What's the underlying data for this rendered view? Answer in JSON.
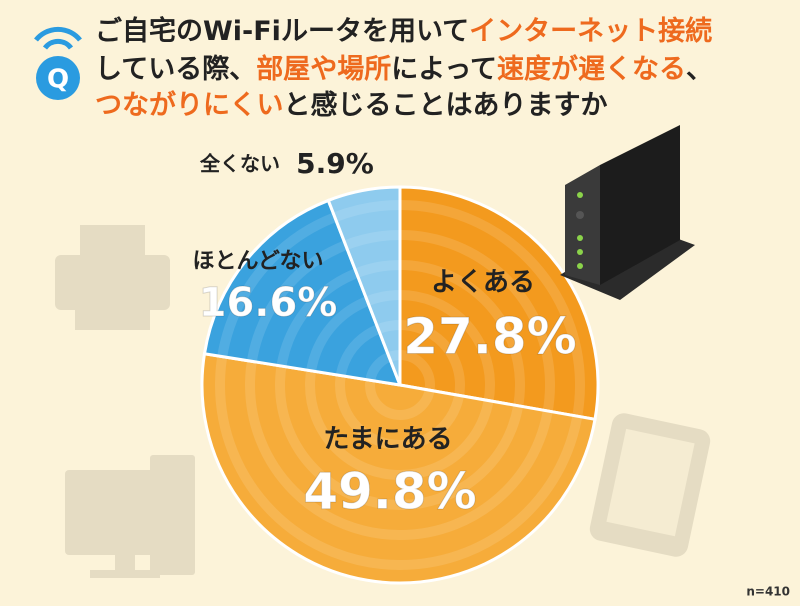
{
  "chart_data": {
    "type": "pie",
    "title_lines": [
      [
        {
          "text": "ご自宅のWi-Fiルータを用いて",
          "color": "#222222"
        },
        {
          "text": "インターネット接続",
          "color": "#ee6a1e"
        }
      ],
      [
        {
          "text": "している際、",
          "color": "#222222"
        },
        {
          "text": "部屋や場所",
          "color": "#ee6a1e"
        },
        {
          "text": "によって",
          "color": "#222222"
        },
        {
          "text": "速度が遅くなる",
          "color": "#ee6a1e"
        },
        {
          "text": "、",
          "color": "#222222"
        }
      ],
      [
        {
          "text": "つながりにくい",
          "color": "#ee6a1e"
        },
        {
          "text": "と感じることはありますか",
          "color": "#222222"
        }
      ]
    ],
    "categories": [
      "よくある",
      "たまにある",
      "ほとんどない",
      "全くない"
    ],
    "values": [
      27.8,
      49.8,
      16.6,
      5.9
    ],
    "value_labels": [
      "27.8%",
      "49.8%",
      "16.6%",
      "5.9%"
    ],
    "colors": [
      "#f39a1e",
      "#f6ac3a",
      "#3aa2de",
      "#8ecbee"
    ],
    "note": "n=410"
  }
}
